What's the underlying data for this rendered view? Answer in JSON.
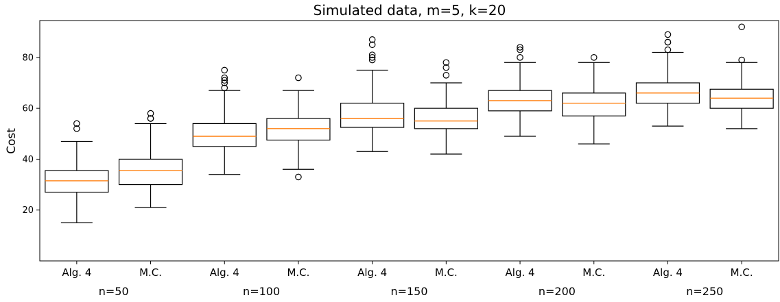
{
  "chart_data": {
    "type": "boxplot",
    "title": "Simulated data, m=5, k=20",
    "xlabel": "",
    "ylabel": "Cost",
    "ylim": [
      0,
      94.5
    ],
    "yticks": [
      20,
      40,
      60,
      80
    ],
    "grid": false,
    "median_color": "#ff7f0e",
    "box_color": "#000000",
    "groups": [
      "n=50",
      "n=100",
      "n=150",
      "n=200",
      "n=250"
    ],
    "categories": [
      "Alg. 4",
      "M.C.",
      "Alg. 4",
      "M.C.",
      "Alg. 4",
      "M.C.",
      "Alg. 4",
      "M.C.",
      "Alg. 4",
      "M.C."
    ],
    "boxes": [
      {
        "label": "Alg. 4",
        "group": "n=50",
        "whisker_low": 15,
        "q1": 27,
        "median": 31.5,
        "q3": 35.5,
        "whisker_high": 47,
        "outliers": [
          52,
          54
        ]
      },
      {
        "label": "M.C.",
        "group": "n=50",
        "whisker_low": 21,
        "q1": 30,
        "median": 35.5,
        "q3": 40,
        "whisker_high": 54,
        "outliers": [
          56,
          56,
          58
        ]
      },
      {
        "label": "Alg. 4",
        "group": "n=100",
        "whisker_low": 34,
        "q1": 45,
        "median": 49,
        "q3": 54,
        "whisker_high": 67,
        "outliers": [
          68,
          70,
          71,
          72,
          75
        ]
      },
      {
        "label": "M.C.",
        "group": "n=100",
        "whisker_low": 36,
        "q1": 47.5,
        "median": 52,
        "q3": 56,
        "whisker_high": 67,
        "outliers": [
          33,
          72
        ]
      },
      {
        "label": "Alg. 4",
        "group": "n=150",
        "whisker_low": 43,
        "q1": 52.5,
        "median": 56,
        "q3": 62,
        "whisker_high": 75,
        "outliers": [
          79,
          80,
          81,
          85,
          87
        ]
      },
      {
        "label": "M.C.",
        "group": "n=150",
        "whisker_low": 42,
        "q1": 52,
        "median": 55,
        "q3": 60,
        "whisker_high": 70,
        "outliers": [
          73,
          76,
          78
        ]
      },
      {
        "label": "Alg. 4",
        "group": "n=200",
        "whisker_low": 49,
        "q1": 59,
        "median": 63,
        "q3": 67,
        "whisker_high": 78,
        "outliers": [
          80,
          83,
          84
        ]
      },
      {
        "label": "M.C.",
        "group": "n=200",
        "whisker_low": 46,
        "q1": 57,
        "median": 62,
        "q3": 66,
        "whisker_high": 78,
        "outliers": [
          80
        ]
      },
      {
        "label": "Alg. 4",
        "group": "n=250",
        "whisker_low": 53,
        "q1": 62,
        "median": 66,
        "q3": 70,
        "whisker_high": 82,
        "outliers": [
          83,
          86,
          86,
          89
        ]
      },
      {
        "label": "M.C.",
        "group": "n=250",
        "whisker_low": 52,
        "q1": 60,
        "median": 64,
        "q3": 67.5,
        "whisker_high": 78,
        "outliers": [
          79,
          92
        ]
      }
    ]
  }
}
